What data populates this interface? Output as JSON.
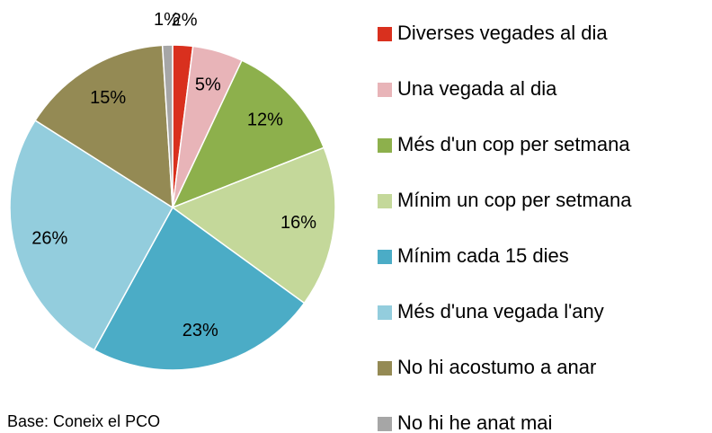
{
  "chart_data": {
    "type": "pie",
    "categories": [
      "Diverses vegades al dia",
      "Una vegada al dia",
      "Més d'un cop per setmana",
      "Mínim un cop per setmana",
      "Mínim cada 15 dies",
      "Més d'una vegada l'any",
      "No hi acostumo a anar",
      "No hi he anat mai"
    ],
    "values": [
      2,
      5,
      12,
      16,
      23,
      26,
      15,
      1
    ],
    "value_labels": [
      "2%",
      "5%",
      "12%",
      "16%",
      "23%",
      "26%",
      "15%",
      "1%"
    ],
    "colors": [
      "#d9301e",
      "#e8b4b8",
      "#8db04c",
      "#c4d89a",
      "#4bacc6",
      "#93cddd",
      "#948a54",
      "#a6a6a6"
    ],
    "legend": "right",
    "note": "Base: Coneix el PCO"
  }
}
